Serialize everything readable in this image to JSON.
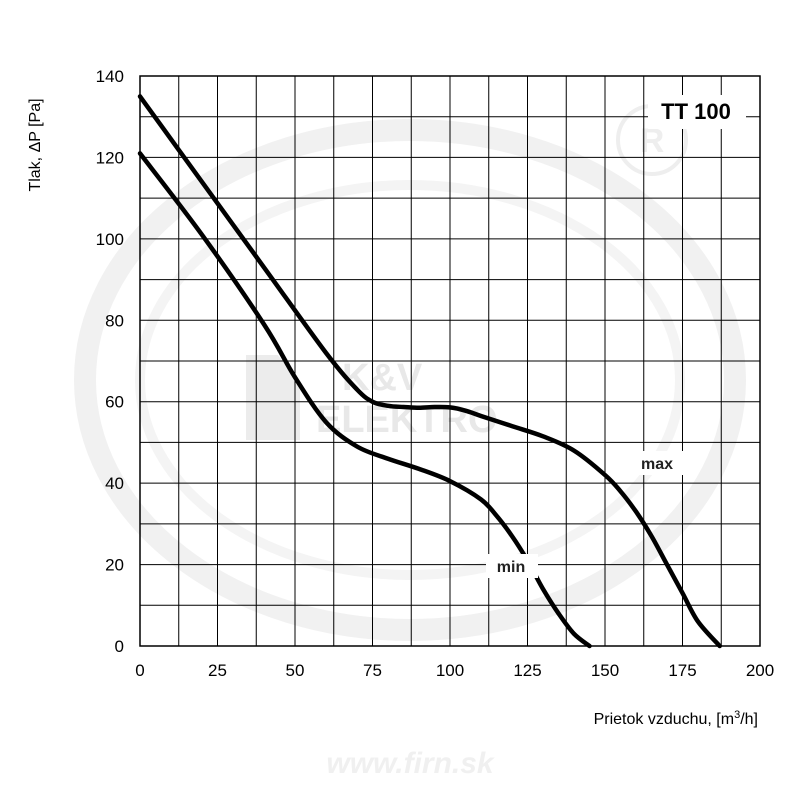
{
  "chart_data": {
    "type": "line",
    "title": "TT 100",
    "xlabel": "Prietok vzduchu, [m³/h]",
    "xlabel_main": "Prietok vzduchu, [m",
    "xlabel_sup": "3",
    "xlabel_tail": "/h]",
    "ylabel": "Tlak,  ΔP [Pa]",
    "xlim": [
      0,
      200
    ],
    "ylim": [
      0,
      140
    ],
    "x_ticks": [
      0,
      25,
      50,
      75,
      100,
      125,
      150,
      175,
      200
    ],
    "y_ticks": [
      0,
      20,
      40,
      60,
      80,
      100,
      120,
      140
    ],
    "grid": true,
    "series": [
      {
        "name": "max",
        "x": [
          0,
          20,
          40,
          60,
          70,
          75,
          80,
          85,
          90,
          95,
          100,
          105,
          110,
          120,
          130,
          140,
          150,
          155,
          160,
          165,
          170,
          175,
          180,
          187
        ],
        "y": [
          135,
          114,
          93,
          72,
          63,
          60,
          59,
          58.7,
          58.5,
          58.7,
          58.6,
          57.8,
          56.5,
          54,
          51.5,
          48,
          42,
          38,
          33,
          27,
          20,
          13,
          6,
          0
        ]
      },
      {
        "name": "min",
        "x": [
          0,
          20,
          40,
          50,
          60,
          70,
          80,
          90,
          100,
          110,
          115,
          120,
          125,
          130,
          135,
          140,
          145
        ],
        "y": [
          121,
          101,
          79,
          66,
          55,
          49,
          46,
          43.5,
          40.5,
          36,
          32,
          27,
          21,
          14,
          8,
          3,
          0
        ]
      }
    ],
    "watermark": {
      "brand": "K&V",
      "brand2": "ELEKTRO",
      "url": "www.firn.sk",
      "mark": "R"
    }
  }
}
